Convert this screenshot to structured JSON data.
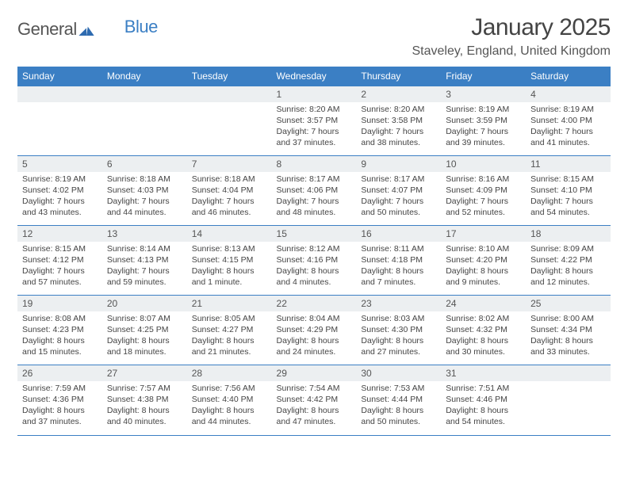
{
  "brand": {
    "part1": "General",
    "part2": "Blue"
  },
  "title": "January 2025",
  "location": "Staveley, England, United Kingdom",
  "colors": {
    "accent": "#3b7fc4",
    "band": "#eceff1",
    "text": "#444444",
    "title_text": "#444444",
    "location_text": "#555555",
    "background": "#ffffff"
  },
  "fonts": {
    "title_size": 30,
    "location_size": 16,
    "dow_size": 12,
    "daynum_size": 12,
    "body_size": 10.5
  },
  "dow": [
    "Sunday",
    "Monday",
    "Tuesday",
    "Wednesday",
    "Thursday",
    "Friday",
    "Saturday"
  ],
  "weeks": [
    [
      null,
      null,
      null,
      {
        "n": "1",
        "sr": "8:20 AM",
        "ss": "3:57 PM",
        "dl": "7 hours and 37 minutes."
      },
      {
        "n": "2",
        "sr": "8:20 AM",
        "ss": "3:58 PM",
        "dl": "7 hours and 38 minutes."
      },
      {
        "n": "3",
        "sr": "8:19 AM",
        "ss": "3:59 PM",
        "dl": "7 hours and 39 minutes."
      },
      {
        "n": "4",
        "sr": "8:19 AM",
        "ss": "4:00 PM",
        "dl": "7 hours and 41 minutes."
      }
    ],
    [
      {
        "n": "5",
        "sr": "8:19 AM",
        "ss": "4:02 PM",
        "dl": "7 hours and 43 minutes."
      },
      {
        "n": "6",
        "sr": "8:18 AM",
        "ss": "4:03 PM",
        "dl": "7 hours and 44 minutes."
      },
      {
        "n": "7",
        "sr": "8:18 AM",
        "ss": "4:04 PM",
        "dl": "7 hours and 46 minutes."
      },
      {
        "n": "8",
        "sr": "8:17 AM",
        "ss": "4:06 PM",
        "dl": "7 hours and 48 minutes."
      },
      {
        "n": "9",
        "sr": "8:17 AM",
        "ss": "4:07 PM",
        "dl": "7 hours and 50 minutes."
      },
      {
        "n": "10",
        "sr": "8:16 AM",
        "ss": "4:09 PM",
        "dl": "7 hours and 52 minutes."
      },
      {
        "n": "11",
        "sr": "8:15 AM",
        "ss": "4:10 PM",
        "dl": "7 hours and 54 minutes."
      }
    ],
    [
      {
        "n": "12",
        "sr": "8:15 AM",
        "ss": "4:12 PM",
        "dl": "7 hours and 57 minutes."
      },
      {
        "n": "13",
        "sr": "8:14 AM",
        "ss": "4:13 PM",
        "dl": "7 hours and 59 minutes."
      },
      {
        "n": "14",
        "sr": "8:13 AM",
        "ss": "4:15 PM",
        "dl": "8 hours and 1 minute."
      },
      {
        "n": "15",
        "sr": "8:12 AM",
        "ss": "4:16 PM",
        "dl": "8 hours and 4 minutes."
      },
      {
        "n": "16",
        "sr": "8:11 AM",
        "ss": "4:18 PM",
        "dl": "8 hours and 7 minutes."
      },
      {
        "n": "17",
        "sr": "8:10 AM",
        "ss": "4:20 PM",
        "dl": "8 hours and 9 minutes."
      },
      {
        "n": "18",
        "sr": "8:09 AM",
        "ss": "4:22 PM",
        "dl": "8 hours and 12 minutes."
      }
    ],
    [
      {
        "n": "19",
        "sr": "8:08 AM",
        "ss": "4:23 PM",
        "dl": "8 hours and 15 minutes."
      },
      {
        "n": "20",
        "sr": "8:07 AM",
        "ss": "4:25 PM",
        "dl": "8 hours and 18 minutes."
      },
      {
        "n": "21",
        "sr": "8:05 AM",
        "ss": "4:27 PM",
        "dl": "8 hours and 21 minutes."
      },
      {
        "n": "22",
        "sr": "8:04 AM",
        "ss": "4:29 PM",
        "dl": "8 hours and 24 minutes."
      },
      {
        "n": "23",
        "sr": "8:03 AM",
        "ss": "4:30 PM",
        "dl": "8 hours and 27 minutes."
      },
      {
        "n": "24",
        "sr": "8:02 AM",
        "ss": "4:32 PM",
        "dl": "8 hours and 30 minutes."
      },
      {
        "n": "25",
        "sr": "8:00 AM",
        "ss": "4:34 PM",
        "dl": "8 hours and 33 minutes."
      }
    ],
    [
      {
        "n": "26",
        "sr": "7:59 AM",
        "ss": "4:36 PM",
        "dl": "8 hours and 37 minutes."
      },
      {
        "n": "27",
        "sr": "7:57 AM",
        "ss": "4:38 PM",
        "dl": "8 hours and 40 minutes."
      },
      {
        "n": "28",
        "sr": "7:56 AM",
        "ss": "4:40 PM",
        "dl": "8 hours and 44 minutes."
      },
      {
        "n": "29",
        "sr": "7:54 AM",
        "ss": "4:42 PM",
        "dl": "8 hours and 47 minutes."
      },
      {
        "n": "30",
        "sr": "7:53 AM",
        "ss": "4:44 PM",
        "dl": "8 hours and 50 minutes."
      },
      {
        "n": "31",
        "sr": "7:51 AM",
        "ss": "4:46 PM",
        "dl": "8 hours and 54 minutes."
      },
      null
    ]
  ],
  "labels": {
    "sunrise": "Sunrise:",
    "sunset": "Sunset:",
    "daylight": "Daylight:"
  }
}
